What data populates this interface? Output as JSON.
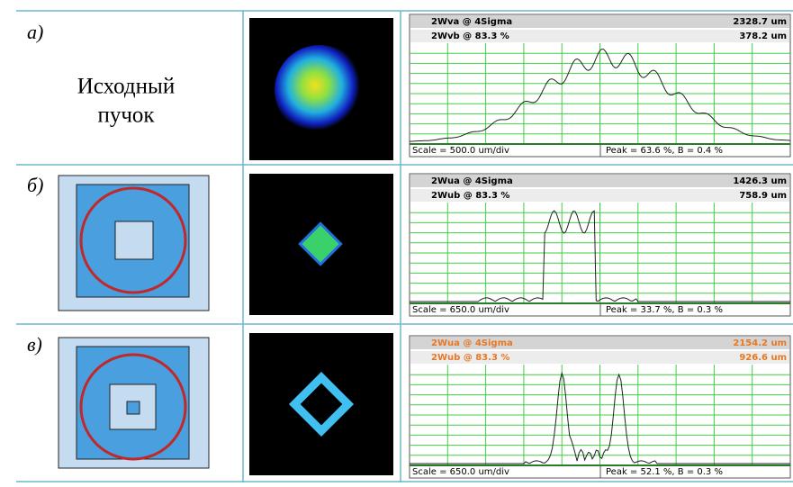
{
  "rows": [
    {
      "label": "а)",
      "description": [
        "Исходный",
        "пучок"
      ],
      "profile": {
        "line1_name": "2Wva @ 4Sigma",
        "line1_value": "2328.7 um",
        "line2_name": "2Wvb @ 83.3 %",
        "line2_value": "378.2 um",
        "scale": "Scale = 500.0 um/div",
        "peak": "Peak = 63.6 %, B = 0.4 %"
      }
    },
    {
      "label": "б)",
      "profile": {
        "line1_name": "2Wua @ 4Sigma",
        "line1_value": "1426.3 um",
        "line2_name": "2Wub @ 83.3 %",
        "line2_value": "758.9 um",
        "scale": "Scale = 650.0 um/div",
        "peak": "Peak = 33.7 %, B = 0.3 %"
      }
    },
    {
      "label": "в)",
      "profile": {
        "line1_name": "2Wua @ 4Sigma",
        "line1_value": "2154.2 um",
        "line2_name": "2Wub @ 83.3 %",
        "line2_value": "926.6 um",
        "scale": "Scale = 650.0 um/div",
        "peak": "Peak = 52.1 %, B = 0.3 %"
      }
    }
  ]
}
